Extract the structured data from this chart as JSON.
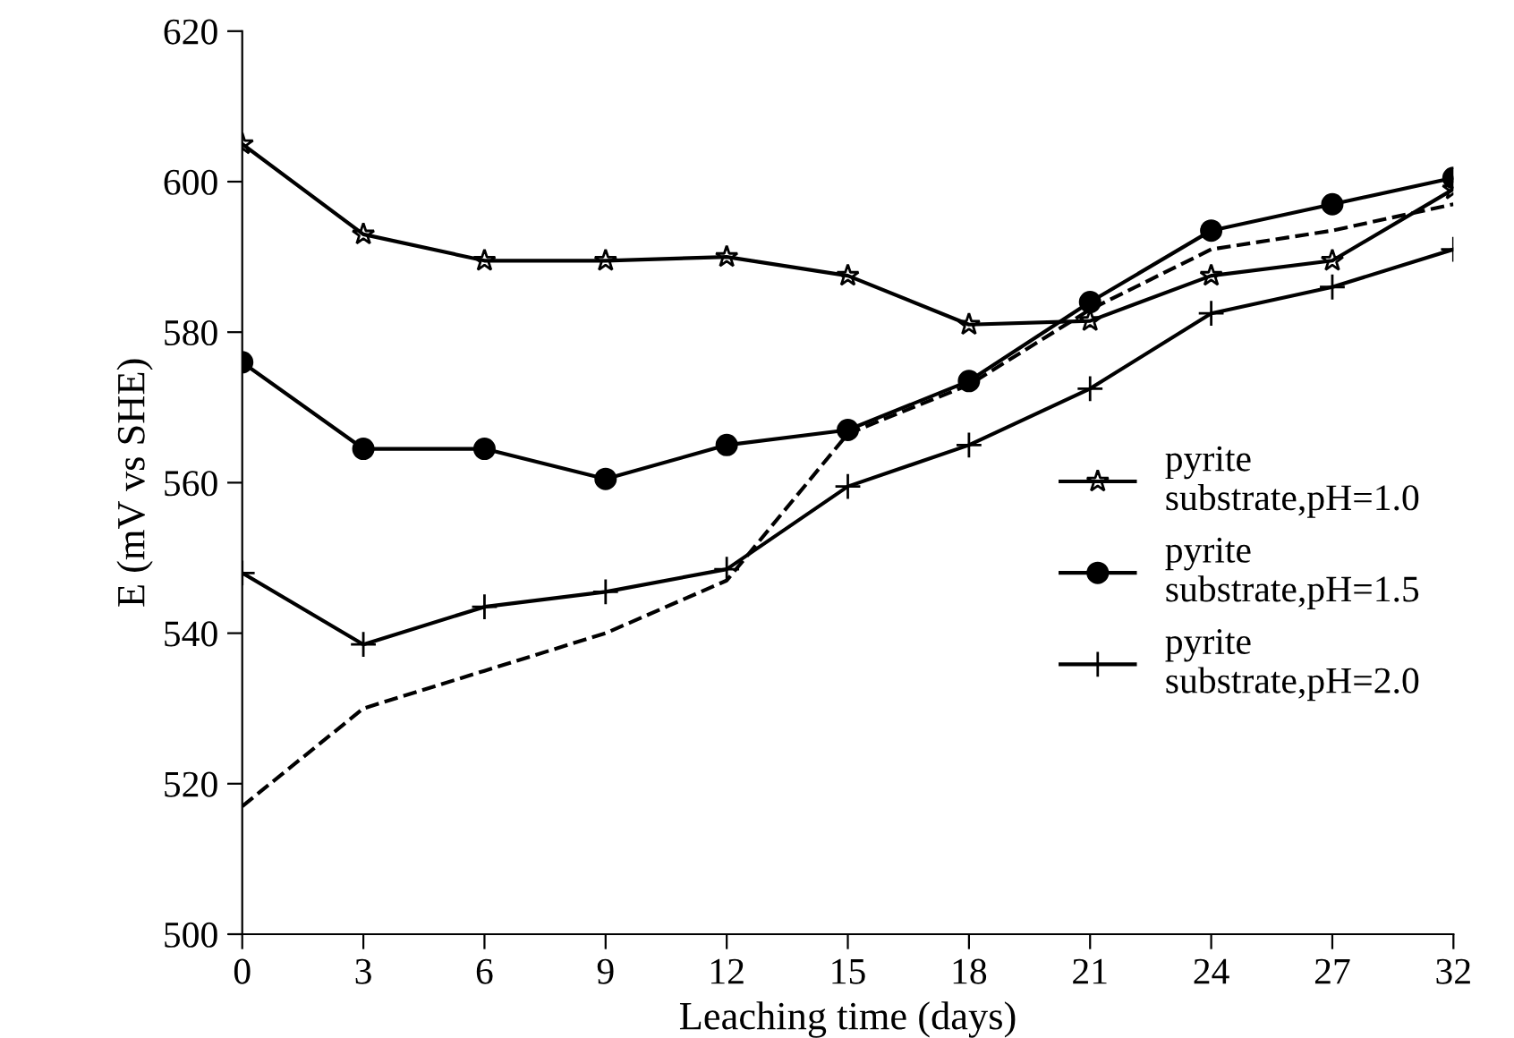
{
  "chart_data": {
    "type": "line",
    "xlabel": "Leaching time (days)",
    "ylabel": "E (mV vs SHE)",
    "categories": [
      "0",
      "3",
      "6",
      "9",
      "12",
      "15",
      "18",
      "21",
      "24",
      "27",
      "32"
    ],
    "series": [
      {
        "name": "pyrite substrate,pH=1.0",
        "color": "#000000",
        "marker": "star",
        "line_style": "solid",
        "values": [
          605,
          593,
          589.5,
          589.5,
          590,
          587.5,
          581,
          581.5,
          587.5,
          589.5,
          599
        ]
      },
      {
        "name": "pyrite substrate,pH=1.5",
        "color": "#000000",
        "marker": "circle",
        "line_style": "solid",
        "values": [
          576,
          564.5,
          564.5,
          560.5,
          565,
          567,
          573.5,
          584,
          593.5,
          597,
          600.5
        ]
      },
      {
        "name": "pyrite substrate,pH=2.0",
        "color": "#000000",
        "marker": "cross",
        "line_style": "solid",
        "values": [
          548,
          538.5,
          543.5,
          545.5,
          548.5,
          559.5,
          565,
          572.5,
          582.5,
          586,
          591
        ]
      },
      {
        "color": "#000000",
        "marker": "none",
        "line_style": "dashed",
        "values": [
          517,
          530,
          535,
          540,
          547,
          566.5,
          573,
          583,
          591,
          593.5,
          597
        ]
      }
    ],
    "ylim": [
      500,
      620
    ],
    "yticks": [
      500,
      520,
      540,
      560,
      580,
      600,
      620
    ],
    "grid": false,
    "legend": "center right"
  }
}
